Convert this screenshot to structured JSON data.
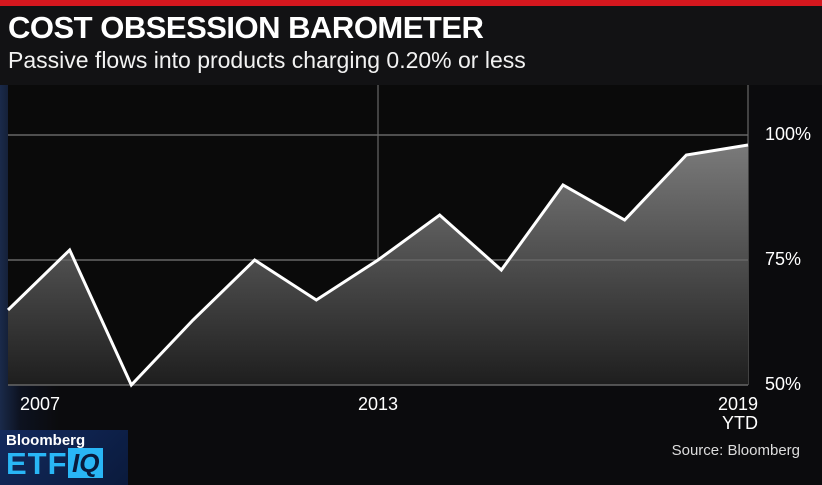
{
  "chart_data": {
    "type": "area",
    "title": "COST OBSESSION BAROMETER",
    "subtitle": "Passive flows into products charging 0.20% or less",
    "categories": [
      "2007",
      null,
      null,
      null,
      null,
      null,
      "2013",
      null,
      null,
      null,
      null,
      null,
      "2019 YTD"
    ],
    "values": [
      65,
      77,
      50,
      63,
      75,
      67,
      75,
      84,
      73,
      90,
      83,
      96,
      98
    ],
    "color": "#ffffff",
    "ylim": [
      50,
      110
    ],
    "yticks": [
      {
        "value": 50,
        "label": "50%"
      },
      {
        "value": 75,
        "label": "75%"
      },
      {
        "value": 100,
        "label": "100%"
      }
    ],
    "grid": true,
    "source": "Source: Bloomberg"
  },
  "logo": {
    "brand": "Bloomberg",
    "show": "ETF",
    "show_suffix": "IQ"
  }
}
